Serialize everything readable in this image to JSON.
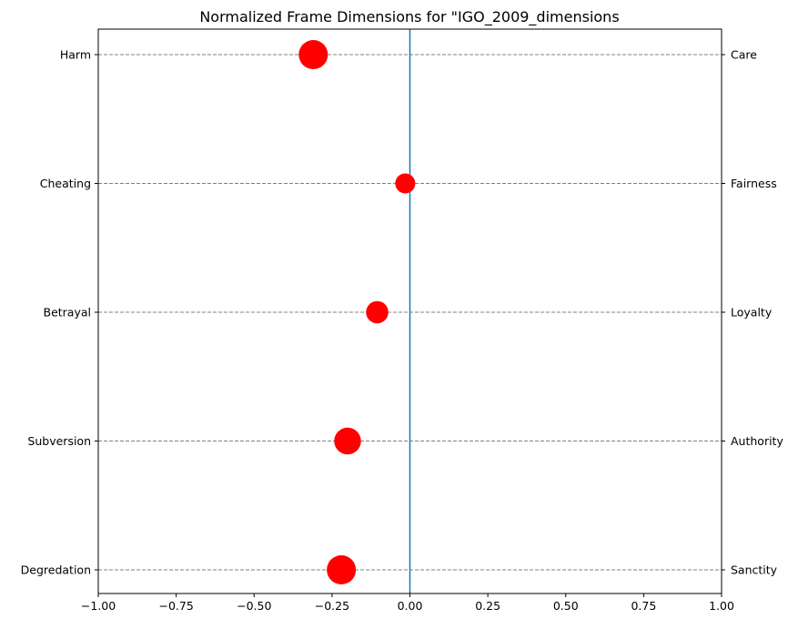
{
  "chart_data": {
    "type": "scatter",
    "title": "Normalized Frame Dimensions for \"IGO_2009_dimensions",
    "xlim": [
      -1.0,
      1.0
    ],
    "xticks": [
      -1.0,
      -0.75,
      -0.5,
      -0.25,
      0.0,
      0.25,
      0.5,
      0.75,
      1.0
    ],
    "xtick_labels": [
      "−1.00",
      "−0.75",
      "−0.50",
      "−0.25",
      "0.00",
      "0.25",
      "0.50",
      "0.75",
      "1.00"
    ],
    "left_labels": [
      "Harm",
      "Cheating",
      "Betrayal",
      "Subversion",
      "Degredation"
    ],
    "right_labels": [
      "Care",
      "Fairness",
      "Loyalty",
      "Authority",
      "Sanctity"
    ],
    "points": [
      {
        "left": "Harm",
        "right": "Care",
        "x": -0.31,
        "size": 4
      },
      {
        "left": "Cheating",
        "right": "Fairness",
        "x": -0.015,
        "size": 2
      },
      {
        "left": "Betrayal",
        "right": "Loyalty",
        "x": -0.105,
        "size": 2.5
      },
      {
        "left": "Subversion",
        "right": "Authority",
        "x": -0.2,
        "size": 3.5
      },
      {
        "left": "Degredation",
        "right": "Sanctity",
        "x": -0.22,
        "size": 4
      }
    ],
    "zero_line_x": 0.0,
    "grid": "horizontal dashed",
    "colors": {
      "marker": "#ff0000",
      "zero_line": "#1f77b4",
      "grid": "#808080"
    }
  }
}
